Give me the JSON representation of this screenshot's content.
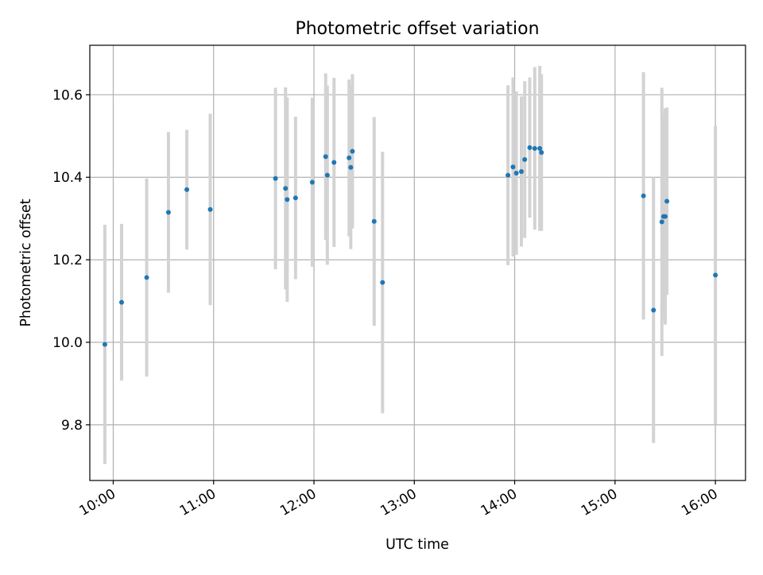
{
  "chart_data": {
    "type": "scatter",
    "title": "Photometric offset variation",
    "xlabel": "UTC time",
    "ylabel": "Photometric offset",
    "x_unit": "hours UTC",
    "xlim": [
      "09:46",
      "16:18"
    ],
    "ylim": [
      9.665,
      10.72
    ],
    "xticks": [
      "10:00",
      "11:00",
      "12:00",
      "13:00",
      "14:00",
      "15:00",
      "16:00"
    ],
    "yticks": [
      9.8,
      10.0,
      10.2,
      10.4,
      10.6
    ],
    "ytick_labels": [
      "9.8",
      "10.0",
      "10.2",
      "10.4",
      "10.6"
    ],
    "grid": true,
    "series": [
      {
        "marker_color": "#1f77b4",
        "errorbar_color": "#d3d3d3",
        "points": [
          {
            "x": "09:55",
            "y": 9.995,
            "err": 0.29
          },
          {
            "x": "10:05",
            "y": 10.097,
            "err": 0.19
          },
          {
            "x": "10:20",
            "y": 10.157,
            "err": 0.24
          },
          {
            "x": "10:33",
            "y": 10.315,
            "err": 0.195
          },
          {
            "x": "10:44",
            "y": 10.37,
            "err": 0.145
          },
          {
            "x": "10:58",
            "y": 10.322,
            "err": 0.232
          },
          {
            "x": "11:37",
            "y": 10.397,
            "err": 0.22
          },
          {
            "x": "11:43",
            "y": 10.373,
            "err": 0.245
          },
          {
            "x": "11:44",
            "y": 10.346,
            "err": 0.248
          },
          {
            "x": "11:49",
            "y": 10.35,
            "err": 0.197
          },
          {
            "x": "11:59",
            "y": 10.388,
            "err": 0.205
          },
          {
            "x": "12:07",
            "y": 10.45,
            "err": 0.202
          },
          {
            "x": "12:08",
            "y": 10.405,
            "err": 0.217
          },
          {
            "x": "12:12",
            "y": 10.436,
            "err": 0.205
          },
          {
            "x": "12:21",
            "y": 10.447,
            "err": 0.19
          },
          {
            "x": "12:22",
            "y": 10.424,
            "err": 0.198
          },
          {
            "x": "12:23",
            "y": 10.463,
            "err": 0.187
          },
          {
            "x": "12:36",
            "y": 10.293,
            "err": 0.253
          },
          {
            "x": "12:41",
            "y": 10.145,
            "err": 0.317
          },
          {
            "x": "13:56",
            "y": 10.405,
            "err": 0.218
          },
          {
            "x": "13:59",
            "y": 10.425,
            "err": 0.217
          },
          {
            "x": "14:01",
            "y": 10.41,
            "err": 0.198
          },
          {
            "x": "14:04",
            "y": 10.414,
            "err": 0.182
          },
          {
            "x": "14:06",
            "y": 10.443,
            "err": 0.19
          },
          {
            "x": "14:09",
            "y": 10.472,
            "err": 0.17
          },
          {
            "x": "14:12",
            "y": 10.47,
            "err": 0.197
          },
          {
            "x": "14:15",
            "y": 10.47,
            "err": 0.2
          },
          {
            "x": "14:16",
            "y": 10.46,
            "err": 0.19
          },
          {
            "x": "15:17",
            "y": 10.355,
            "err": 0.3
          },
          {
            "x": "15:23",
            "y": 10.078,
            "err": 0.322
          },
          {
            "x": "15:28",
            "y": 10.292,
            "err": 0.325
          },
          {
            "x": "15:29",
            "y": 10.305,
            "err": 0.25
          },
          {
            "x": "15:30",
            "y": 10.305,
            "err": 0.262
          },
          {
            "x": "15:31",
            "y": 10.342,
            "err": 0.227
          },
          {
            "x": "16:00",
            "y": 10.163,
            "err": 0.362
          }
        ]
      }
    ]
  }
}
